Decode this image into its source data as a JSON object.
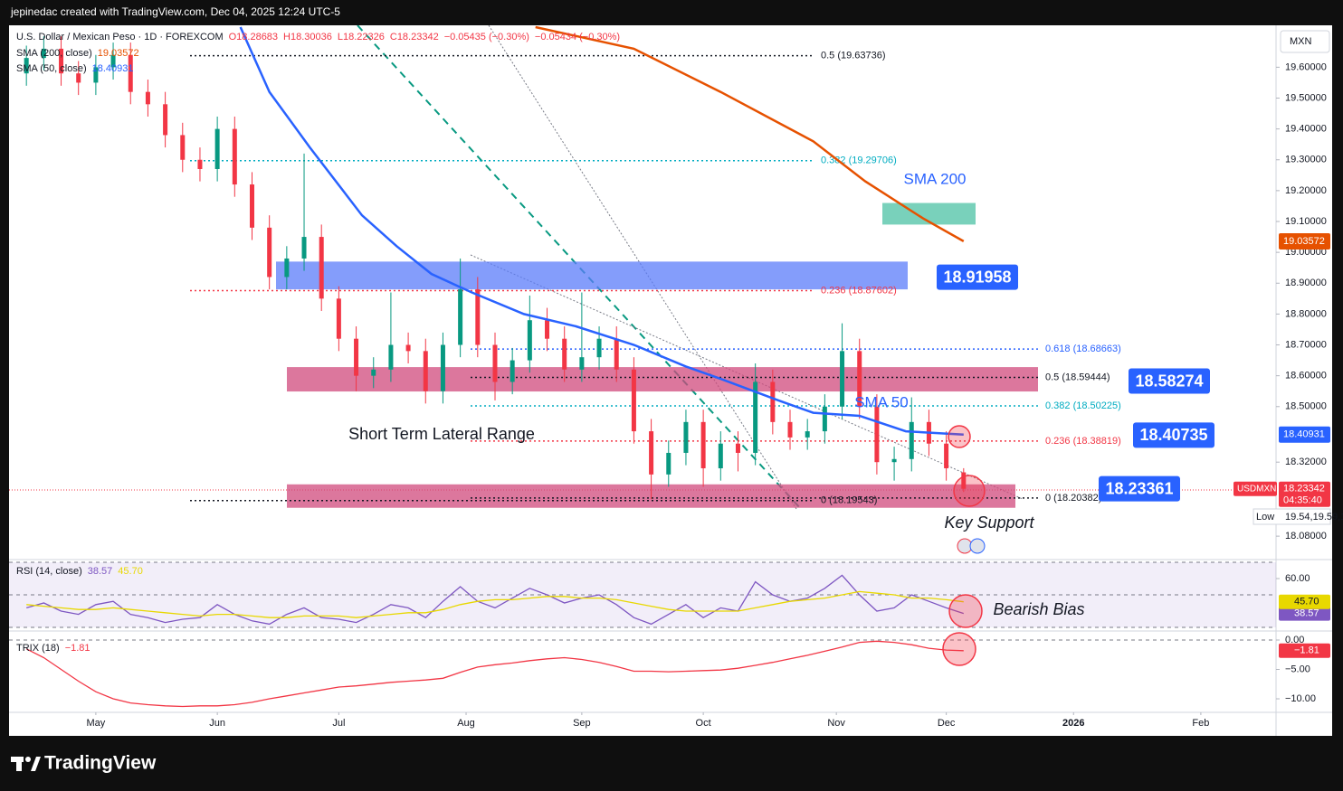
{
  "header": {
    "credit": "jepinedac created with TradingView.com, Dec 04, 2025 12:24 UTC-5",
    "brand": "TradingView"
  },
  "chart_data": [
    {
      "type": "candlestick",
      "title": "U.S. Dollar / Mexican Peso · 1D · FOREXCOM",
      "quote": [
        "O18.28683",
        "H18.30036",
        "L18.22326",
        "C18.23342",
        "−0.05435 (−0.30%)",
        "−0.05434 (−0.30%)"
      ],
      "unit": "MXN",
      "symbol": "USDMXN",
      "countdown": "04:35:40",
      "low_text": "Low",
      "low": [
        19.54,
        19.59,
        19.54,
        19.51,
        19.51,
        19.56,
        19.48,
        19.44,
        19.34,
        19.26,
        19.23,
        19.23,
        19.18,
        19.04,
        18.88,
        18.88,
        18.94,
        18.81,
        18.68,
        18.55,
        18.56,
        18.58,
        18.64,
        18.51,
        18.51,
        18.66,
        18.66,
        18.52,
        18.54,
        18.61,
        18.68,
        18.58,
        18.58,
        18.62,
        18.58,
        18.38,
        18.2,
        18.24,
        18.31,
        18.24,
        18.26,
        18.29,
        18.31,
        18.41,
        18.36,
        18.36,
        18.38,
        18.46,
        18.46,
        18.28,
        18.26,
        18.29,
        18.34,
        18.26,
        18.22326
      ],
      "up_color": "#089981",
      "down_color": "#f23645",
      "x": [
        3,
        6,
        9,
        12,
        15,
        18,
        21,
        24,
        27,
        30,
        33,
        36,
        39,
        42,
        45,
        48,
        51,
        54,
        57,
        60,
        63,
        66,
        69,
        72,
        75,
        78,
        81,
        84,
        87,
        90,
        93,
        96,
        99,
        102,
        105,
        108,
        111,
        114,
        117,
        120,
        123,
        126,
        129,
        132,
        135,
        138,
        141,
        144,
        147,
        150,
        153,
        156,
        159,
        162,
        165
      ],
      "open": [
        19.58,
        19.63,
        19.66,
        19.58,
        19.55,
        19.6,
        19.64,
        19.52,
        19.48,
        19.38,
        19.3,
        19.27,
        19.4,
        19.22,
        19.08,
        18.92,
        18.98,
        19.05,
        18.85,
        18.72,
        18.6,
        18.62,
        18.7,
        18.68,
        18.55,
        18.7,
        18.88,
        18.7,
        18.58,
        18.65,
        18.78,
        18.72,
        18.62,
        18.66,
        18.72,
        18.62,
        18.42,
        18.28,
        18.35,
        18.45,
        18.3,
        18.38,
        18.35,
        18.58,
        18.45,
        18.4,
        18.42,
        18.5,
        18.68,
        18.5,
        18.32,
        18.33,
        18.45,
        18.38,
        18.28683
      ],
      "high": [
        19.67,
        19.7,
        19.7,
        19.62,
        19.64,
        19.68,
        19.68,
        19.56,
        19.52,
        19.42,
        19.34,
        19.44,
        19.44,
        19.26,
        19.12,
        19.02,
        19.32,
        19.09,
        18.89,
        18.76,
        18.66,
        18.87,
        18.74,
        18.72,
        18.74,
        18.98,
        18.92,
        18.74,
        18.69,
        18.86,
        18.82,
        18.76,
        18.87,
        18.76,
        18.76,
        18.66,
        18.46,
        18.39,
        18.49,
        18.49,
        18.42,
        18.42,
        18.64,
        18.62,
        18.49,
        18.46,
        18.54,
        18.77,
        18.72,
        18.54,
        18.37,
        18.53,
        18.49,
        18.42,
        18.30036
      ],
      "close": [
        19.63,
        19.66,
        19.58,
        19.55,
        19.6,
        19.64,
        19.52,
        19.48,
        19.38,
        19.3,
        19.27,
        19.4,
        19.22,
        19.08,
        18.92,
        18.98,
        19.05,
        18.85,
        18.72,
        18.6,
        18.62,
        18.7,
        18.68,
        18.55,
        18.7,
        18.88,
        18.7,
        18.58,
        18.65,
        18.78,
        18.72,
        18.62,
        18.66,
        18.72,
        18.62,
        18.42,
        18.28,
        18.35,
        18.45,
        18.3,
        18.38,
        18.35,
        18.58,
        18.45,
        18.4,
        18.42,
        18.5,
        18.68,
        18.5,
        18.32,
        18.33,
        18.45,
        18.38,
        18.3,
        18.23342
      ],
      "series": [
        {
          "name": "SMA (200, close)",
          "color": "#e65100",
          "x": [
            91,
            108,
            123,
            139,
            148,
            158,
            165
          ],
          "values": [
            19.73,
            19.66,
            19.52,
            19.36,
            19.23,
            19.11,
            19.03572
          ]
        },
        {
          "name": "SMA (50, close)",
          "color": "#2962ff",
          "x": [
            40,
            45,
            52,
            61,
            67,
            73,
            80,
            89,
            98,
            108,
            117,
            123,
            133,
            139,
            147,
            155,
            165
          ],
          "values": [
            19.73,
            19.52,
            19.34,
            19.12,
            19.02,
            18.93,
            18.87,
            18.8,
            18.76,
            18.7,
            18.63,
            18.59,
            18.52,
            18.48,
            18.47,
            18.42,
            18.40931
          ]
        }
      ],
      "xlim": [
        0,
        219
      ],
      "xticks": [
        {
          "value": 15,
          "label": "May"
        },
        {
          "value": 36,
          "label": "Jun"
        },
        {
          "value": 57,
          "label": "Jul"
        },
        {
          "value": 79,
          "label": "Aug"
        },
        {
          "value": 99,
          "label": "Sep"
        },
        {
          "value": 120,
          "label": "Oct"
        },
        {
          "value": 143,
          "label": "Nov"
        },
        {
          "value": 162,
          "label": "Dec"
        },
        {
          "value": 184,
          "label": "2026"
        },
        {
          "value": 206,
          "label": "Feb"
        }
      ],
      "ylim": [
        18.01,
        19.73
      ],
      "yticks": [
        {
          "value": 19.6,
          "label": "19.60000"
        },
        {
          "value": 19.5,
          "label": "19.50000"
        },
        {
          "value": 19.4,
          "label": "19.40000"
        },
        {
          "value": 19.3,
          "label": "19.30000"
        },
        {
          "value": 19.2,
          "label": "19.20000"
        },
        {
          "value": 19.1,
          "label": "19.10000"
        },
        {
          "value": 19.0,
          "label": "19.00000"
        },
        {
          "value": 18.9,
          "label": "18.90000"
        },
        {
          "value": 18.8,
          "label": "18.80000"
        },
        {
          "value": 18.7,
          "label": "18.70000"
        },
        {
          "value": 18.6,
          "label": "18.60000"
        },
        {
          "value": 18.5,
          "label": "18.50000"
        },
        {
          "value": 18.32,
          "label": "18.32000"
        },
        {
          "value": 18.08,
          "label": "18.08000"
        }
      ],
      "fib_sets": [
        [
          {
            "label": "0.5 (19.63736)",
            "value": 19.63736,
            "color": "#131722"
          },
          {
            "label": "0.382 (19.29706)",
            "value": 19.29706,
            "color": "#00acc1"
          },
          {
            "label": "0.236 (18.87602)",
            "value": 18.87602,
            "color": "#f23645"
          },
          {
            "label": "0 (18.19543)",
            "value": 18.19543,
            "color": "#131722"
          }
        ],
        [
          {
            "label": "0.618 (18.68663)",
            "value": 18.68663,
            "color": "#2962ff"
          },
          {
            "label": "0.5 (18.59444)",
            "value": 18.59444,
            "color": "#131722"
          },
          {
            "label": "0.382 (18.50225)",
            "value": 18.50225,
            "color": "#00acc1"
          },
          {
            "label": "0.236 (18.38819)",
            "value": 18.38819,
            "color": "#f23645"
          },
          {
            "label": "0 (18.20382)",
            "value": 18.20382,
            "color": "#131722"
          }
        ]
      ],
      "zones": [
        {
          "top": 18.97,
          "bottom": 18.88,
          "color": "#5b7cfa"
        },
        {
          "top": 18.628,
          "bottom": 18.549,
          "color": "#d04a7c"
        },
        {
          "top": 18.248,
          "bottom": 18.172,
          "color": "#d04a7c"
        },
        {
          "top": 19.16,
          "bottom": 19.09,
          "color": "#4cc2a4"
        }
      ],
      "price_tags": [
        18.91958,
        18.58274,
        18.40735,
        18.23361
      ],
      "annotations": [
        "SMA 200",
        "SMA 50",
        "Short Term Lateral Range",
        "Key Support",
        "Bearish Bias"
      ]
    },
    {
      "type": "line",
      "title": "RSI (14, close)",
      "x": [
        3,
        6,
        9,
        12,
        15,
        18,
        21,
        24,
        27,
        30,
        33,
        36,
        39,
        42,
        45,
        48,
        51,
        54,
        57,
        60,
        63,
        66,
        69,
        72,
        75,
        78,
        81,
        84,
        87,
        90,
        93,
        96,
        99,
        102,
        105,
        108,
        111,
        114,
        117,
        120,
        123,
        126,
        129,
        132,
        135,
        138,
        141,
        144,
        147,
        150,
        153,
        156,
        159,
        162,
        165
      ],
      "series": [
        {
          "color": "#7e57c2",
          "last_label": "38.57",
          "values": [
            42,
            45,
            40,
            38,
            44,
            46,
            38,
            36,
            33,
            35,
            36,
            44,
            38,
            34,
            32,
            38,
            42,
            36,
            35,
            33,
            38,
            44,
            42,
            36,
            46,
            55,
            46,
            42,
            48,
            54,
            50,
            45,
            48,
            50,
            44,
            36,
            32,
            38,
            44,
            36,
            42,
            40,
            58,
            50,
            46,
            48,
            54,
            62,
            50,
            40,
            42,
            50,
            46,
            42,
            38.57
          ]
        },
        {
          "color": "#e8d800",
          "last_label": "45.70",
          "values": [
            44,
            43,
            42,
            41,
            41,
            42,
            41,
            40,
            39,
            38,
            37,
            38,
            38,
            37,
            36,
            36,
            37,
            37,
            37,
            36,
            37,
            38,
            39,
            39,
            41,
            44,
            46,
            47,
            47,
            48,
            49,
            49,
            48,
            48,
            47,
            45,
            43,
            41,
            40,
            40,
            40,
            40,
            42,
            44,
            46,
            47,
            48,
            50,
            52,
            51,
            50,
            48,
            48,
            47,
            45.7
          ]
        }
      ],
      "ylim": [
        28.33,
        71.67
      ],
      "yticks": [
        {
          "value": 60,
          "label": "60.00"
        }
      ],
      "bands": [
        70,
        50,
        30
      ],
      "band_color": "#7e57c2"
    },
    {
      "type": "line",
      "title": "TRIX (18)",
      "x": [
        3,
        6,
        9,
        12,
        15,
        18,
        21,
        24,
        27,
        30,
        33,
        36,
        39,
        42,
        45,
        48,
        51,
        54,
        57,
        60,
        63,
        66,
        69,
        72,
        75,
        78,
        81,
        84,
        87,
        90,
        93,
        96,
        99,
        102,
        105,
        108,
        111,
        114,
        117,
        120,
        123,
        126,
        129,
        132,
        135,
        138,
        141,
        144,
        147,
        150,
        153,
        156,
        159,
        162,
        165
      ],
      "series": [
        {
          "color": "#f23645",
          "last_label": "−1.81",
          "values": [
            -1.5,
            -3,
            -5,
            -7,
            -8.8,
            -10,
            -10.7,
            -11,
            -11.2,
            -11.3,
            -11.2,
            -11.2,
            -11,
            -10.6,
            -10,
            -9.5,
            -9,
            -8.5,
            -8,
            -7.8,
            -7.5,
            -7.2,
            -7,
            -6.8,
            -6.5,
            -5.5,
            -4.6,
            -4.2,
            -3.9,
            -3.5,
            -3.2,
            -3,
            -3.3,
            -3.8,
            -4.5,
            -5.3,
            -5.3,
            -5.4,
            -5.3,
            -5.2,
            -5.1,
            -4.8,
            -4.3,
            -3.8,
            -3.2,
            -2.6,
            -1.9,
            -1.2,
            -0.4,
            -0.2,
            -0.4,
            -0.8,
            -1.4,
            -1.7,
            -1.81
          ]
        }
      ],
      "ylim": [
        -12.15,
        1.23
      ],
      "yticks": [
        {
          "value": 0,
          "label": "0.00"
        },
        {
          "value": -5,
          "label": "−5.00"
        },
        {
          "value": -10,
          "label": "−10.00"
        }
      ],
      "bands": [
        0
      ]
    }
  ]
}
